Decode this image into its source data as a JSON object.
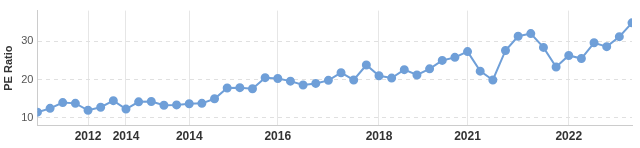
{
  "chart_data": {
    "type": "line",
    "y_label": "PE Ratio",
    "categories": [
      null,
      null,
      null,
      null,
      "2012",
      null,
      null,
      "2014",
      null,
      null,
      null,
      null,
      "2014",
      null,
      null,
      null,
      null,
      null,
      null,
      "2016",
      null,
      null,
      null,
      null,
      null,
      null,
      null,
      "2018",
      null,
      null,
      null,
      null,
      null,
      null,
      "2021",
      null,
      null,
      null,
      null,
      null,
      null,
      null,
      "2022",
      null,
      null,
      null,
      null,
      null
    ],
    "values": [
      11.5,
      12.5,
      14.0,
      13.8,
      12.0,
      12.8,
      14.5,
      12.3,
      14.2,
      14.3,
      13.3,
      13.4,
      13.7,
      13.8,
      15.0,
      17.8,
      17.9,
      17.6,
      20.5,
      20.3,
      19.6,
      18.6,
      19.0,
      19.8,
      21.8,
      19.9,
      23.8,
      21.0,
      20.4,
      22.6,
      21.2,
      22.8,
      25.0,
      25.8,
      27.3,
      22.2,
      19.9,
      27.6,
      31.3,
      32.0,
      28.4,
      23.3,
      26.3,
      25.5,
      29.6,
      28.6,
      31.2,
      34.8
    ],
    "color": "#6f9fd8",
    "marker": "circle",
    "ylim": [
      8,
      38
    ],
    "yticks": [
      10,
      20,
      30
    ],
    "grid": true
  }
}
